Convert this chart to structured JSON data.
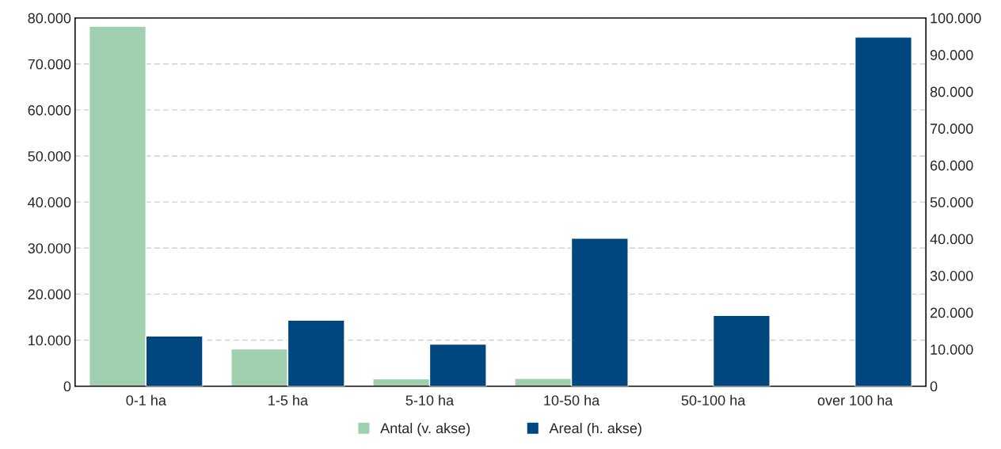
{
  "chart_data": {
    "type": "bar",
    "categories": [
      "0-1 ha",
      "1-5 ha",
      "5-10 ha",
      "10-50 ha",
      "50-100 ha",
      "over 100 ha"
    ],
    "series": [
      {
        "name": "Antal (v. akse)",
        "color": "#a0d0b0",
        "values": [
          78200,
          8100,
          1600,
          1700,
          null,
          100
        ]
      },
      {
        "name": "Areal (h. akse)",
        "color": "#00467f",
        "axis": "y2",
        "values": [
          13600,
          17900,
          11400,
          40200,
          19200,
          94800
        ]
      }
    ],
    "ylim": [
      0,
      80000
    ],
    "yticks": [
      {
        "value": 0,
        "label": "0"
      },
      {
        "value": 10000,
        "label": "10.000"
      },
      {
        "value": 20000,
        "label": "20.000"
      },
      {
        "value": 30000,
        "label": "30.000"
      },
      {
        "value": 40000,
        "label": "40.000"
      },
      {
        "value": 50000,
        "label": "50.000"
      },
      {
        "value": 60000,
        "label": "60.000"
      },
      {
        "value": 70000,
        "label": "70.000"
      },
      {
        "value": 80000,
        "label": "80.000"
      }
    ],
    "y2lim": [
      0,
      100000
    ],
    "y2ticks": [
      {
        "value": 0,
        "label": "0"
      },
      {
        "value": 10000,
        "label": "10.000"
      },
      {
        "value": 20000,
        "label": "20.000"
      },
      {
        "value": 30000,
        "label": "30.000"
      },
      {
        "value": 40000,
        "label": "40.000"
      },
      {
        "value": 50000,
        "label": "50.000"
      },
      {
        "value": 60000,
        "label": "60.000"
      },
      {
        "value": 70000,
        "label": "70.000"
      },
      {
        "value": 80000,
        "label": "80.000"
      },
      {
        "value": 90000,
        "label": "90.000"
      },
      {
        "value": 100000,
        "label": "100.000"
      }
    ],
    "grid": "y",
    "legend": "bottom"
  }
}
